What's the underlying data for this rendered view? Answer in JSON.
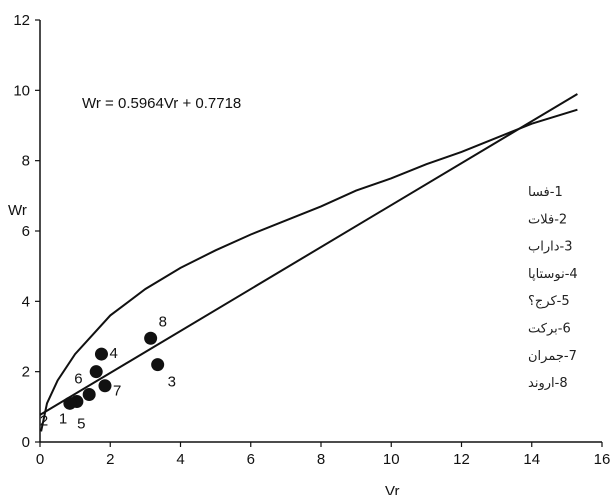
{
  "chart_data": {
    "type": "scatter",
    "xlabel": "Vr",
    "ylabel": "Wr",
    "xlim": [
      0,
      16
    ],
    "ylim": [
      0,
      12
    ],
    "xticks": [
      "0",
      "2",
      "4",
      "6",
      "8",
      "10",
      "12",
      "14",
      "16"
    ],
    "yticks": [
      "0",
      "2",
      "4",
      "6",
      "8",
      "10",
      "12"
    ],
    "equation": "Wr = 0.5964Vr + 0.7718",
    "regression": {
      "slope": 0.5964,
      "intercept": 0.7718,
      "x_range": [
        0,
        15.3
      ]
    },
    "envelope_curve": {
      "x": [
        0.03,
        0.2,
        0.5,
        1,
        2,
        3,
        4,
        5,
        6,
        7,
        8,
        9,
        10,
        11,
        12,
        13,
        14,
        15.3
      ],
      "y": [
        0.3,
        1.1,
        1.75,
        2.5,
        3.6,
        4.35,
        4.95,
        5.45,
        5.9,
        6.3,
        6.7,
        7.15,
        7.5,
        7.9,
        8.25,
        8.65,
        9.05,
        9.45
      ]
    },
    "points": [
      {
        "label": "1",
        "x": 1.05,
        "y": 1.15
      },
      {
        "label": "2",
        "x": 0.85,
        "y": 1.1
      },
      {
        "label": "3",
        "x": 3.35,
        "y": 2.2
      },
      {
        "label": "4",
        "x": 1.75,
        "y": 2.5
      },
      {
        "label": "5",
        "x": 1.4,
        "y": 1.35
      },
      {
        "label": "6",
        "x": 1.6,
        "y": 2.0
      },
      {
        "label": "7",
        "x": 1.85,
        "y": 1.6
      },
      {
        "label": "8",
        "x": 3.15,
        "y": 2.95
      }
    ],
    "legend": {
      "position": "right",
      "entries": [
        "1-فسا",
        "2-فلات",
        "3-داراب",
        "4-نوستاپا",
        "5-کرج؟",
        "6-برکت",
        "7-جمران",
        "8-اروند"
      ]
    }
  }
}
